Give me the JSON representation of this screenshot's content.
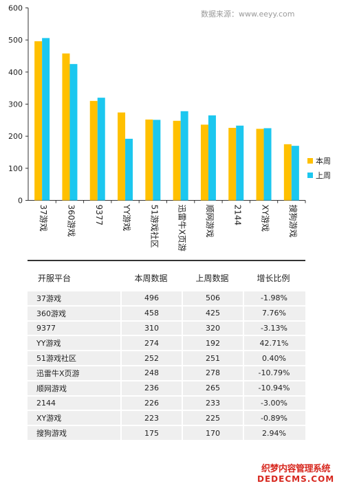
{
  "source_note": "数据来源：www.eeyy.com",
  "chart_data": {
    "type": "bar",
    "categories": [
      "37游戏",
      "360游戏",
      "9377",
      "YY游戏",
      "51游戏社区",
      "迅雷牛X页游",
      "顺网游戏",
      "2144",
      "XY游戏",
      "搜狗游戏"
    ],
    "series": [
      {
        "name": "本周",
        "color": "#ffc000",
        "values": [
          496,
          458,
          310,
          274,
          252,
          248,
          236,
          226,
          223,
          175
        ]
      },
      {
        "name": "上周",
        "color": "#1cc7ef",
        "values": [
          506,
          425,
          320,
          192,
          251,
          278,
          265,
          233,
          225,
          170
        ]
      }
    ],
    "ylim": [
      0,
      600
    ],
    "yticks": [
      0,
      100,
      200,
      300,
      400,
      500,
      600
    ],
    "grid": false,
    "legend": "right"
  },
  "table": {
    "headers": [
      "开服平台",
      "本周数据",
      "上周数据",
      "增长比例"
    ],
    "rows": [
      [
        "37游戏",
        "496",
        "506",
        "-1.98%"
      ],
      [
        "360游戏",
        "458",
        "425",
        "7.76%"
      ],
      [
        "9377",
        "310",
        "320",
        "-3.13%"
      ],
      [
        "YY游戏",
        "274",
        "192",
        "42.71%"
      ],
      [
        "51游戏社区",
        "252",
        "251",
        "0.40%"
      ],
      [
        "迅雷牛X页游",
        "248",
        "278",
        "-10.79%"
      ],
      [
        "顺网游戏",
        "236",
        "265",
        "-10.94%"
      ],
      [
        "2144",
        "226",
        "233",
        "-3.00%"
      ],
      [
        "XY游戏",
        "223",
        "225",
        "-0.89%"
      ],
      [
        "搜狗游戏",
        "175",
        "170",
        "2.94%"
      ]
    ]
  },
  "watermark": {
    "line1": "织梦内容管理系统",
    "line2": "DEDECMS.COM"
  }
}
